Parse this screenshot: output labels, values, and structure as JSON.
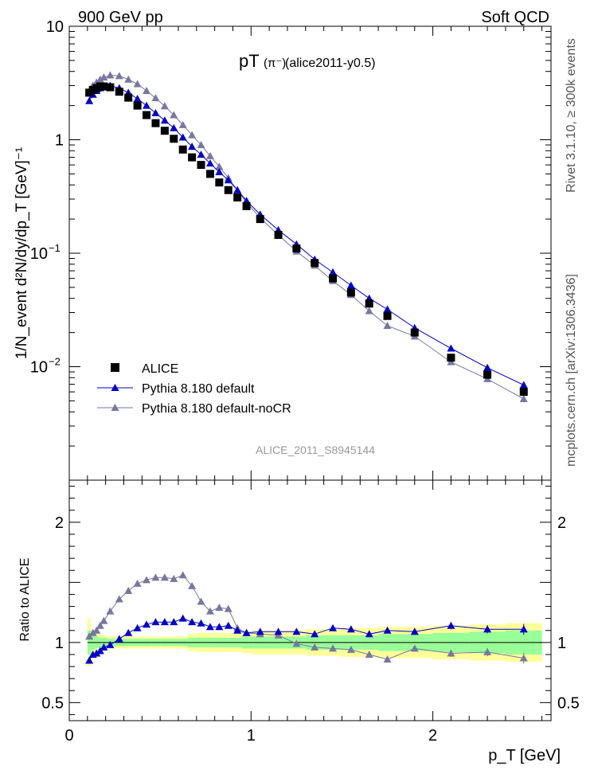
{
  "header": {
    "left": "900 GeV pp",
    "right": "Soft QCD"
  },
  "side": {
    "rivet": "Rivet 3.1.10, ≥ 300k events",
    "mcplots": "mcplots.cern.ch [arXiv:1306.3436]"
  },
  "plot": {
    "title_main": "pT",
    "title_particle": "(π⁻)",
    "title_tag": "(alice2011-y0.5)",
    "watermark": "ALICE_2011_S8945144",
    "ylabel_top": "1/N_event d²N/dy/dp_T [GeV]⁻¹",
    "ylabel_bottom": "Ratio to ALICE",
    "xlabel": "p_T [GeV]"
  },
  "colors": {
    "data": "#000000",
    "default": "#0000cc",
    "nocr": "#7777a0",
    "band_inner": "#99ff99",
    "band_outer": "#ffff99"
  },
  "chart_data": {
    "type": "scatter",
    "x_range": [
      0,
      2.65
    ],
    "y_range_main_log10": [
      -3.0,
      1.0
    ],
    "y_range_ratio": [
      0.35,
      2.35
    ],
    "x_ticks": [
      0,
      1,
      2
    ],
    "ratio_ticks": [
      0.5,
      1,
      2
    ],
    "main_tick_labels": [
      "10",
      "1",
      "10^-1",
      "10^-2"
    ],
    "legend": [
      "ALICE",
      "Pythia 8.180 default",
      "Pythia 8.180 default-noCR"
    ],
    "x": [
      0.11,
      0.13,
      0.15,
      0.17,
      0.19,
      0.225,
      0.275,
      0.325,
      0.375,
      0.425,
      0.475,
      0.525,
      0.575,
      0.625,
      0.675,
      0.725,
      0.775,
      0.825,
      0.875,
      0.925,
      0.975,
      1.05,
      1.15,
      1.25,
      1.35,
      1.45,
      1.55,
      1.65,
      1.75,
      1.9,
      2.1,
      2.3,
      2.5
    ],
    "series": [
      {
        "name": "ALICE",
        "values": [
          2.6,
          2.75,
          2.85,
          2.95,
          2.95,
          2.9,
          2.65,
          2.35,
          2.0,
          1.65,
          1.4,
          1.2,
          1.02,
          0.82,
          0.7,
          0.6,
          0.5,
          0.42,
          0.36,
          0.31,
          0.26,
          0.2,
          0.145,
          0.11,
          0.082,
          0.06,
          0.045,
          0.036,
          0.028,
          0.02,
          0.012,
          0.0085,
          0.006
        ]
      },
      {
        "name": "Pythia 8.180 default",
        "values": [
          2.2,
          2.5,
          2.7,
          2.85,
          2.95,
          3.0,
          2.85,
          2.6,
          2.3,
          2.0,
          1.72,
          1.48,
          1.27,
          1.05,
          0.87,
          0.74,
          0.62,
          0.52,
          0.44,
          0.36,
          0.29,
          0.22,
          0.16,
          0.12,
          0.088,
          0.068,
          0.052,
          0.04,
          0.032,
          0.022,
          0.0145,
          0.0098,
          0.0069
        ]
      },
      {
        "name": "Pythia 8.180 default-noCR",
        "values": [
          2.6,
          3.0,
          3.2,
          3.4,
          3.55,
          3.7,
          3.65,
          3.4,
          3.1,
          2.7,
          2.33,
          1.98,
          1.65,
          1.35,
          1.1,
          0.9,
          0.72,
          0.58,
          0.46,
          0.36,
          0.28,
          0.205,
          0.145,
          0.104,
          0.078,
          0.057,
          0.043,
          0.031,
          0.023,
          0.0185,
          0.011,
          0.0078,
          0.0052
        ]
      }
    ],
    "ratio_series": [
      {
        "name": "Pythia 8.180 default",
        "values": [
          0.85,
          0.9,
          0.91,
          0.93,
          0.96,
          0.98,
          1.03,
          1.08,
          1.12,
          1.15,
          1.17,
          1.17,
          1.17,
          1.2,
          1.17,
          1.16,
          1.13,
          1.13,
          1.14,
          1.1,
          1.08,
          1.09,
          1.09,
          1.09,
          1.07,
          1.12,
          1.11,
          1.07,
          1.1,
          1.09,
          1.14,
          1.11,
          1.11
        ]
      },
      {
        "name": "Pythia 8.180 default-noCR",
        "values": [
          1.05,
          1.08,
          1.1,
          1.14,
          1.18,
          1.26,
          1.36,
          1.43,
          1.49,
          1.52,
          1.54,
          1.54,
          1.53,
          1.56,
          1.47,
          1.34,
          1.26,
          1.29,
          1.28,
          1.12,
          1.08,
          1.07,
          1.06,
          0.99,
          0.96,
          0.95,
          0.94,
          0.9,
          0.86,
          0.95,
          0.91,
          0.92,
          0.87
        ]
      }
    ],
    "ratio_errors": [
      0,
      0,
      0,
      0,
      0,
      0,
      0,
      0,
      0,
      0,
      0,
      0,
      0,
      0,
      0,
      0,
      0,
      0,
      0,
      0,
      0,
      0,
      0,
      0,
      0,
      0,
      0,
      0.025,
      0.025,
      0.025,
      0.03,
      0.035,
      0.045
    ],
    "band_inner_halfwidth": [
      0.1,
      0.06,
      0.05,
      0.04,
      0.04,
      0.03,
      0.03,
      0.03,
      0.03,
      0.03,
      0.03,
      0.03,
      0.03,
      0.03,
      0.04,
      0.04,
      0.04,
      0.04,
      0.04,
      0.04,
      0.05,
      0.05,
      0.05,
      0.05,
      0.06,
      0.06,
      0.06,
      0.06,
      0.07,
      0.07,
      0.08,
      0.09,
      0.1
    ],
    "band_outer_halfwidth": [
      0.2,
      0.1,
      0.08,
      0.07,
      0.06,
      0.05,
      0.05,
      0.05,
      0.05,
      0.05,
      0.05,
      0.05,
      0.05,
      0.05,
      0.07,
      0.08,
      0.08,
      0.08,
      0.08,
      0.08,
      0.09,
      0.1,
      0.1,
      0.1,
      0.11,
      0.11,
      0.12,
      0.12,
      0.13,
      0.13,
      0.14,
      0.15,
      0.16
    ]
  }
}
